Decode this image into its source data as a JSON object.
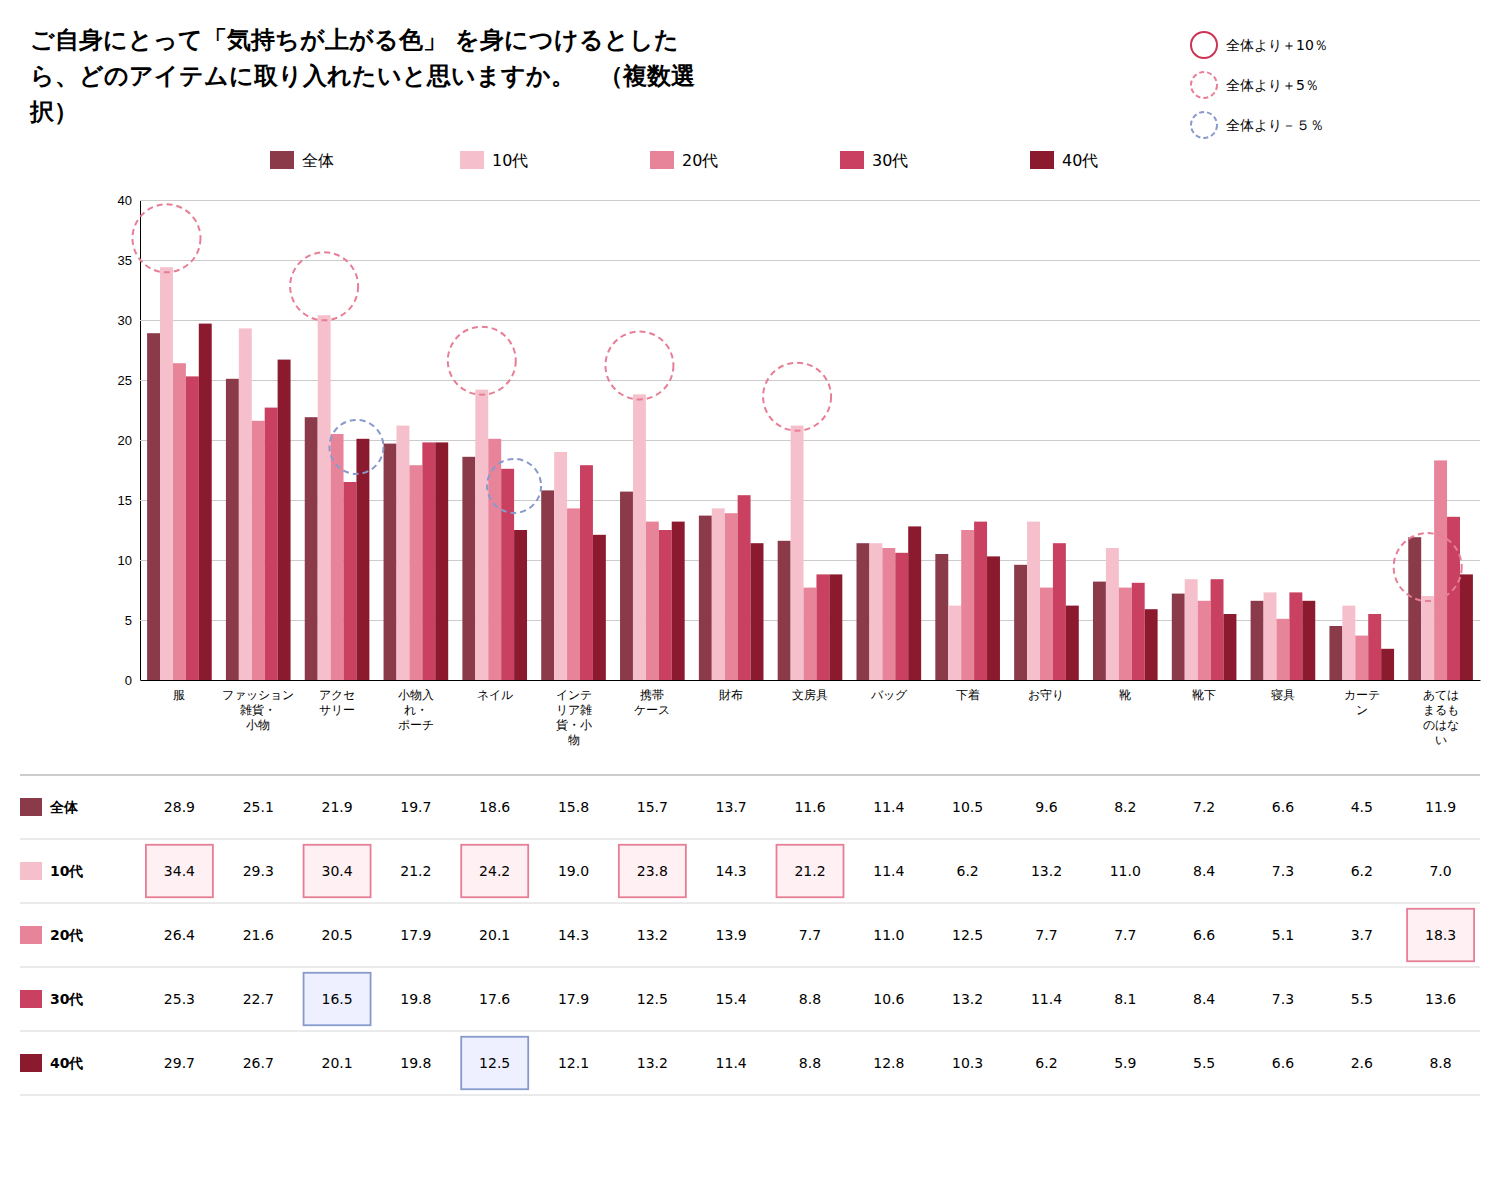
{
  "chart_data": {
    "type": "bar",
    "title": "ご自身にとって「気持ちが上がる色」 を身につけるとした\nら、どのアイテムに取り入れたいと思いますか。　（複数選\n択）",
    "categories": [
      "服",
      "ファッション\n雑貨・\n小物",
      "アクセ\nサリー",
      "小物入\nれ・\nポーチ",
      "ネイル",
      "インテ\nリア雑\n貨・小\n物",
      "携帯\nケース",
      "財布",
      "文房具",
      "バッグ",
      "下着",
      "お守り",
      "靴",
      "靴下",
      "寝具",
      "カーテ\nン",
      "あては\nまるも\nのはな\nい"
    ],
    "series": [
      {
        "name": "全体",
        "color": "#8B3A4A",
        "values": [
          28.9,
          25.1,
          21.9,
          19.7,
          18.6,
          15.8,
          15.7,
          13.7,
          11.6,
          11.4,
          10.5,
          9.6,
          8.2,
          7.2,
          6.6,
          4.5,
          11.9
        ],
        "value_labels": [
          "28.9",
          "25.1",
          "21.9",
          "19.7",
          "18.6",
          "15.8",
          "15.7",
          "13.7",
          "11.6",
          "11.4",
          "10.5",
          "9.6",
          "8.2",
          "7.2",
          "6.6",
          "4.5",
          "11.9"
        ]
      },
      {
        "name": "10代",
        "color": "#F5C0CC",
        "values": [
          34.4,
          29.3,
          30.4,
          21.2,
          24.2,
          19.0,
          23.8,
          14.3,
          21.2,
          11.4,
          6.2,
          13.2,
          11.0,
          8.4,
          7.3,
          6.2,
          7.0
        ],
        "value_labels": [
          "34.4",
          "29.3",
          "30.4",
          "21.2",
          "24.2",
          "19.0",
          "23.8",
          "14.3",
          "21.2",
          "11.4",
          "6.2",
          "13.2",
          "11.0",
          "8.4",
          "7.3",
          "6.2",
          "7.0"
        ]
      },
      {
        "name": "20代",
        "color": "#E8849A",
        "values": [
          26.4,
          21.6,
          20.5,
          17.9,
          20.1,
          14.3,
          13.2,
          13.9,
          7.7,
          11.0,
          12.5,
          7.7,
          7.7,
          6.6,
          5.1,
          3.7,
          18.3
        ],
        "value_labels": [
          "26.4",
          "21.6",
          "20.5",
          "17.9",
          "20.1",
          "14.3",
          "13.2",
          "13.9",
          "7.7",
          "11.0",
          "12.5",
          "7.7",
          "7.7",
          "6.6",
          "5.1",
          "3.7",
          "18.3"
        ]
      },
      {
        "name": "30代",
        "color": "#C94060",
        "values": [
          25.3,
          22.7,
          16.5,
          19.8,
          17.6,
          17.9,
          12.5,
          15.4,
          8.8,
          10.6,
          13.2,
          11.4,
          8.1,
          8.4,
          7.3,
          5.5,
          13.6
        ],
        "value_labels": [
          "25.3",
          "22.7",
          "16.5",
          "19.8",
          "17.6",
          "17.9",
          "12.5",
          "15.4",
          "8.8",
          "10.6",
          "13.2",
          "11.4",
          "8.1",
          "8.4",
          "7.3",
          "5.5",
          "13.6"
        ]
      },
      {
        "name": "40代",
        "color": "#8B1A2E",
        "values": [
          29.7,
          26.7,
          20.1,
          19.8,
          12.5,
          12.1,
          13.2,
          11.4,
          8.8,
          12.8,
          10.3,
          6.2,
          5.9,
          5.5,
          6.6,
          2.6,
          8.8
        ],
        "value_labels": [
          "29.7",
          "26.7",
          "20.1",
          "19.8",
          "12.5",
          "12.1",
          "13.2",
          "11.4",
          "8.8",
          "12.8",
          "10.3",
          "6.2",
          "5.9",
          "5.5",
          "6.6",
          "2.6",
          "8.8"
        ]
      }
    ],
    "ylim": [
      0,
      40
    ],
    "yticks": [
      0,
      5,
      10,
      15,
      20,
      25,
      30,
      35,
      40
    ],
    "grid": true,
    "legend": "top",
    "annotations": [
      {
        "text": "全体より＋10％",
        "color": "#CC3355",
        "line_style": "solid"
      },
      {
        "text": "全体より＋5％",
        "color": "#E87E96",
        "line_style": "dashed",
        "cell_color": "#FFF0F3",
        "circled": [
          {
            "series": [
              "10代"
            ],
            "category": 0
          },
          {
            "series": [
              "10代"
            ],
            "category": 2
          },
          {
            "series": [
              "10代"
            ],
            "category": 4
          },
          {
            "series": [
              "10代"
            ],
            "category": 6
          },
          {
            "series": [
              "10代"
            ],
            "category": 8
          },
          {
            "series": [
              "10代"
            ],
            "category": 16
          }
        ],
        "cells": [
          {
            "series": "10代",
            "category": 0
          },
          {
            "series": "10代",
            "category": 2
          },
          {
            "series": "10代",
            "category": 4
          },
          {
            "series": "10代",
            "category": 6
          },
          {
            "series": "10代",
            "category": 8
          },
          {
            "series": "20代",
            "category": 16
          }
        ]
      },
      {
        "text": "全体より－５％",
        "color": "#8899CC",
        "line_style": "dashed",
        "cell_color": "#EEF0FF",
        "circled": [
          {
            "series": [
              "30代",
              "40代"
            ],
            "category": 2
          },
          {
            "series": [
              "30代",
              "40代"
            ],
            "category": 4
          }
        ],
        "cells": [
          {
            "series": "30代",
            "category": 2
          },
          {
            "series": "40代",
            "category": 4
          }
        ]
      }
    ]
  }
}
